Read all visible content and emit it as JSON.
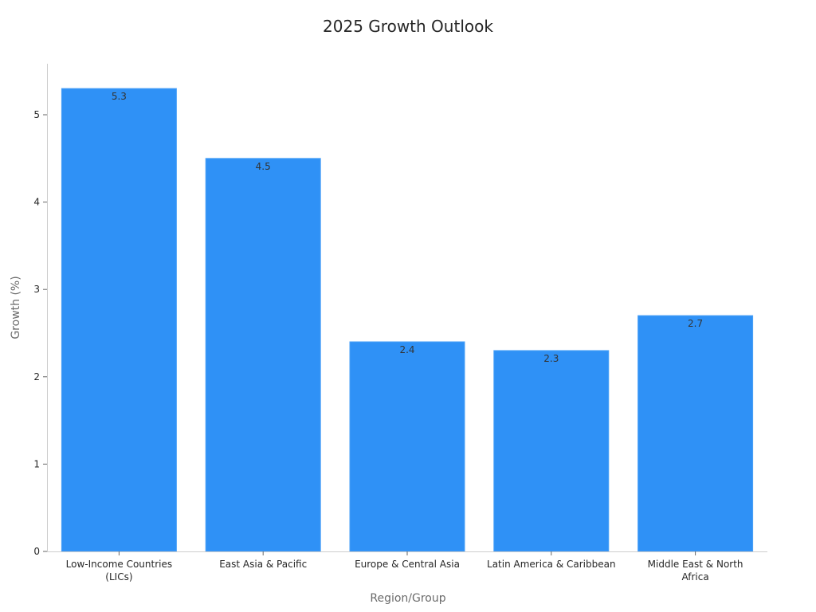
{
  "chart_data": {
    "type": "bar",
    "title": "2025 Growth Outlook",
    "xlabel": "Region/Group",
    "ylabel": "Growth (%)",
    "categories": [
      [
        "Low-Income Countries",
        "(LICs)"
      ],
      [
        "East Asia & Pacific"
      ],
      [
        "Europe & Central Asia"
      ],
      [
        "Latin America & Caribbean"
      ],
      [
        "Middle East & North",
        "Africa"
      ]
    ],
    "values": [
      5.3,
      4.5,
      2.4,
      2.3,
      2.7
    ],
    "value_labels": [
      "5.3",
      "4.5",
      "2.4",
      "2.3",
      "2.7"
    ],
    "yticks": [
      0,
      1,
      2,
      3,
      4,
      5
    ],
    "ylim": [
      0,
      5.58
    ],
    "grid": false,
    "bar_color": "#2F91F6"
  }
}
